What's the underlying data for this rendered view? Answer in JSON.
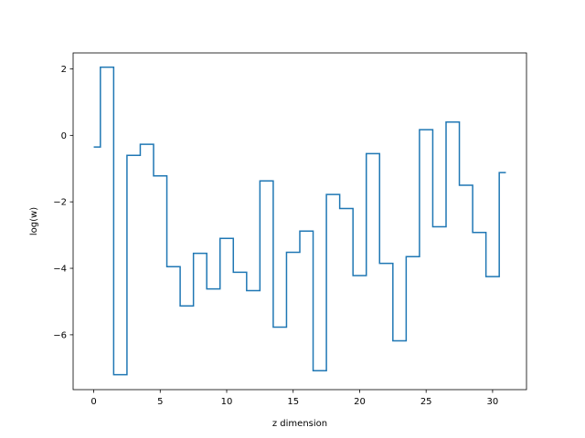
{
  "chart_data": {
    "type": "line",
    "drawstyle": "steps-mid",
    "title": "",
    "xlabel": "z dimension",
    "ylabel": "log(w)",
    "xlim": [
      -1.55,
      32.55
    ],
    "ylim": [
      -7.65,
      2.48
    ],
    "xticks": [
      0,
      5,
      10,
      15,
      20,
      25,
      30
    ],
    "yticks": [
      -6,
      -4,
      -2,
      0,
      2
    ],
    "grid": false,
    "legend": "none",
    "series": [
      {
        "color": "#1f77b4",
        "x": [
          0,
          1,
          2,
          3,
          4,
          5,
          6,
          7,
          8,
          9,
          10,
          11,
          12,
          13,
          14,
          15,
          16,
          17,
          18,
          19,
          20,
          21,
          22,
          23,
          24,
          25,
          26,
          27,
          28,
          29,
          30,
          31
        ],
        "y": [
          -0.35,
          2.05,
          -7.2,
          -0.6,
          -0.27,
          -1.22,
          -3.95,
          -5.13,
          -3.55,
          -4.62,
          -3.1,
          -4.12,
          -4.67,
          -1.37,
          -5.77,
          -3.52,
          -2.88,
          -7.08,
          -1.78,
          -2.2,
          -4.22,
          -0.55,
          -3.85,
          -6.18,
          -3.65,
          0.17,
          -2.75,
          0.4,
          -1.5,
          -2.92,
          -4.25,
          -1.12
        ]
      }
    ]
  }
}
